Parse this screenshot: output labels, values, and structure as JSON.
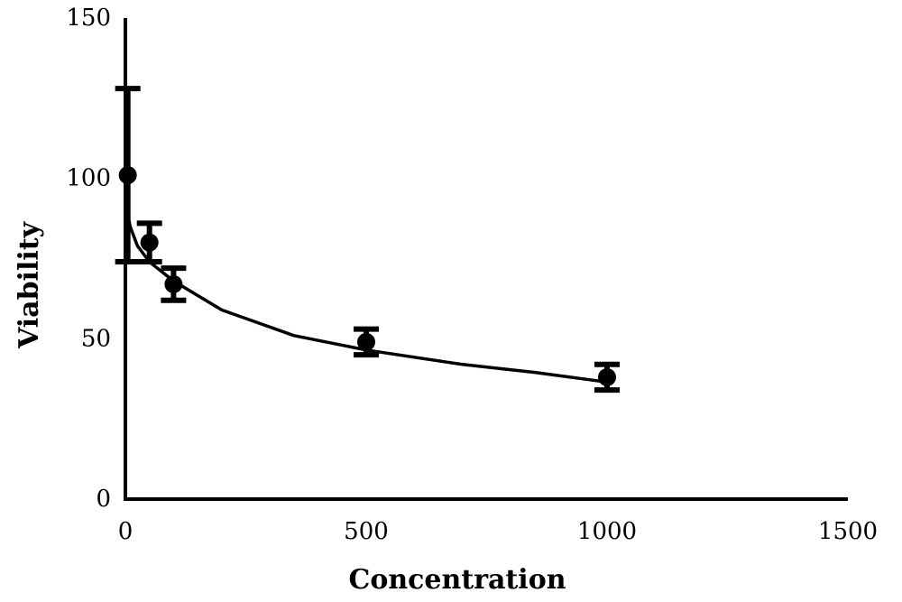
{
  "chart_data": {
    "type": "scatter",
    "title": "",
    "xlabel": "Concentration",
    "ylabel": "Viability",
    "xlim": [
      0,
      1500
    ],
    "ylim": [
      0,
      150
    ],
    "xticks": [
      0,
      500,
      1000,
      1500
    ],
    "yticks": [
      0,
      50,
      100,
      150
    ],
    "grid": false,
    "legend": "none",
    "series": [
      {
        "points": [
          {
            "x": 5,
            "y": 101,
            "err": 27
          },
          {
            "x": 50,
            "y": 80,
            "err": 6
          },
          {
            "x": 100,
            "y": 67,
            "err": 5
          },
          {
            "x": 500,
            "y": 49,
            "err": 4
          },
          {
            "x": 1000,
            "y": 38,
            "err": 4
          }
        ]
      }
    ],
    "trendline": {
      "type": "logarithmic",
      "points": [
        {
          "x": 2,
          "y": 91
        },
        {
          "x": 10,
          "y": 85
        },
        {
          "x": 25,
          "y": 79
        },
        {
          "x": 50,
          "y": 74
        },
        {
          "x": 100,
          "y": 68
        },
        {
          "x": 200,
          "y": 59
        },
        {
          "x": 350,
          "y": 51
        },
        {
          "x": 500,
          "y": 46.5
        },
        {
          "x": 700,
          "y": 42
        },
        {
          "x": 850,
          "y": 39.5
        },
        {
          "x": 1000,
          "y": 36.5
        }
      ]
    },
    "colors": {
      "marker": "#000000",
      "line": "#000000",
      "axis": "#000000"
    }
  }
}
